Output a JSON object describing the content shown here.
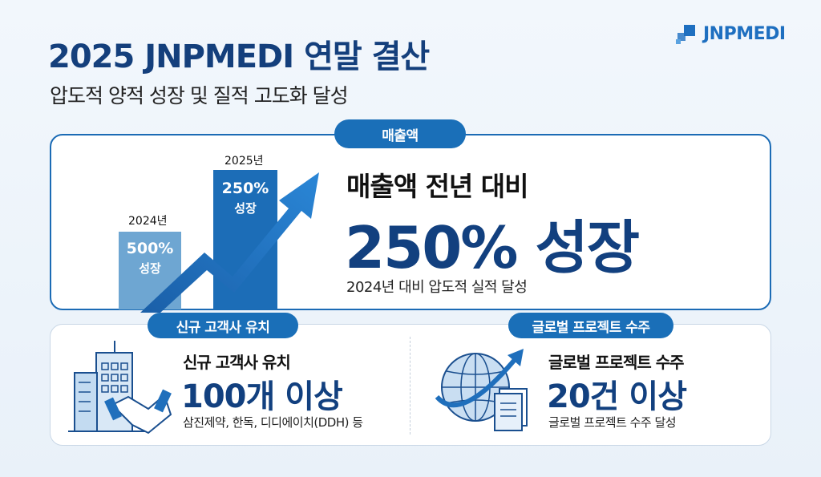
{
  "header": {
    "title": "2025 JNPMEDI 연말 결산",
    "subtitle": "압도적 양적 성장 및 질적 고도화 달성",
    "logo": "JNPMEDI"
  },
  "revenue": {
    "pill": "매출액",
    "bars": [
      {
        "year": "2024년",
        "value": "500%",
        "label": "성장"
      },
      {
        "year": "2025년",
        "value": "250%",
        "label": "성장"
      }
    ],
    "headline": "매출액 전년 대비",
    "big": "250% 성장",
    "sub": "2024년 대비 압도적 실적 달성"
  },
  "clients": {
    "pill": "신규 고객사 유치",
    "headline": "신규 고객사 유치",
    "big": "100개 이상",
    "sub": "삼진제약, 한독, 디디에이치(DDH) 등",
    "icon": "building-handshake-icon"
  },
  "global": {
    "pill": "글로벌 프로젝트 수주",
    "headline": "글로벌 프로젝트 수주",
    "big": "20건 이상",
    "sub": "글로벌 프로젝트 수주 달성",
    "icon": "globe-document-icon"
  },
  "colors": {
    "navy": "#12407f",
    "accent": "#1a6fb8",
    "light_bar": "#6ea6d2"
  }
}
